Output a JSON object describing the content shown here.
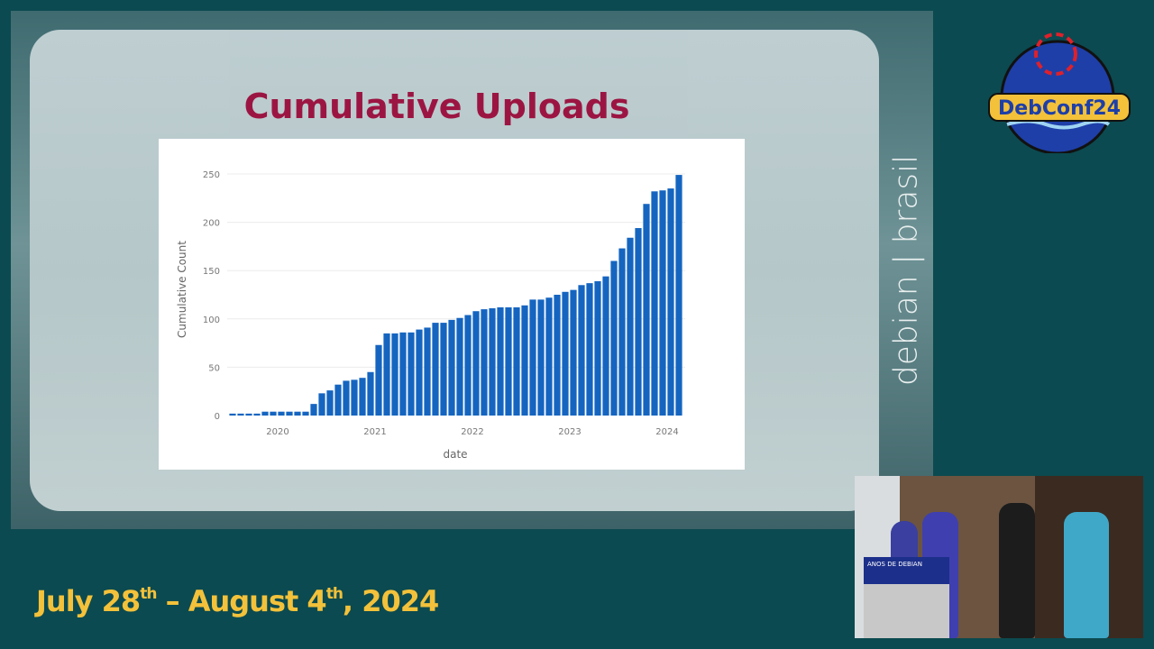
{
  "slide": {
    "title": "Cumulative Uploads"
  },
  "branding": {
    "vertical_text": "debian | brasil",
    "logo_text": "DebConf24"
  },
  "event_date": {
    "part1": "July 28",
    "sup1": "th",
    "part2": " – August 4",
    "sup2": "th",
    "part3": ", 2024"
  },
  "colors": {
    "title": "#a0103f",
    "bar": "#1565c0",
    "date": "#f3c13a",
    "frame": "#0b4a50"
  },
  "video_inset": {
    "banner_text": "ANOS DE DEBIAN"
  },
  "chart_data": {
    "type": "bar",
    "title": "",
    "xlabel": "date",
    "ylabel": "Cumulative Count",
    "ylim": [
      0,
      250
    ],
    "yticks": [
      0,
      50,
      100,
      150,
      200,
      250
    ],
    "xticks": [
      "2020",
      "2021",
      "2022",
      "2023",
      "2024"
    ],
    "grid": true,
    "categories": [
      "2019-07",
      "2019-08",
      "2019-09",
      "2019-10",
      "2019-11",
      "2019-12",
      "2020-01",
      "2020-02",
      "2020-03",
      "2020-04",
      "2020-05",
      "2020-06",
      "2020-07",
      "2020-08",
      "2020-09",
      "2020-10",
      "2020-11",
      "2020-12",
      "2021-01",
      "2021-02",
      "2021-03",
      "2021-04",
      "2021-05",
      "2021-06",
      "2021-07",
      "2021-08",
      "2021-09",
      "2021-10",
      "2021-11",
      "2021-12",
      "2022-01",
      "2022-02",
      "2022-03",
      "2022-04",
      "2022-05",
      "2022-06",
      "2022-07",
      "2022-08",
      "2022-09",
      "2022-10",
      "2022-11",
      "2022-12",
      "2023-01",
      "2023-02",
      "2023-03",
      "2023-04",
      "2023-05",
      "2023-06",
      "2023-07",
      "2023-08",
      "2023-09",
      "2023-10",
      "2023-11",
      "2023-12",
      "2024-01",
      "2024-02"
    ],
    "values": [
      2,
      2,
      2,
      2,
      4,
      4,
      4,
      4,
      4,
      4,
      12,
      23,
      26,
      32,
      36,
      37,
      39,
      45,
      73,
      85,
      85,
      86,
      86,
      89,
      91,
      96,
      96,
      99,
      101,
      104,
      108,
      110,
      111,
      112,
      112,
      112,
      114,
      120,
      120,
      122,
      125,
      128,
      130,
      135,
      137,
      139,
      144,
      160,
      173,
      184,
      194,
      219,
      232,
      233,
      235,
      249
    ]
  }
}
